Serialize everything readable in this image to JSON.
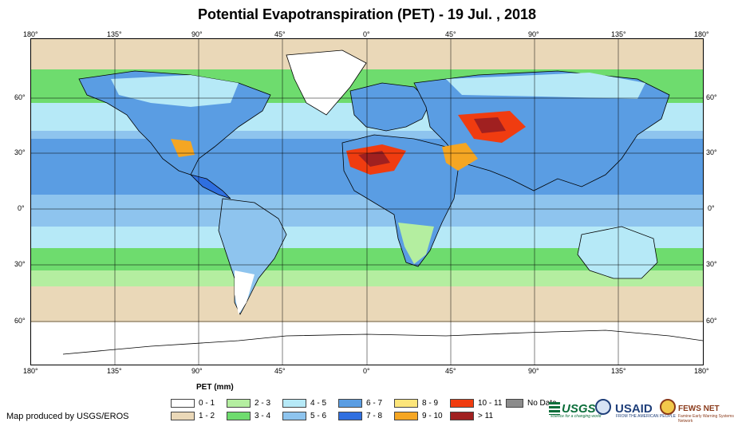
{
  "title": "Potential Evapotranspiration (PET) - 19 Jul. , 2018",
  "longitude_labels": [
    "180°",
    "135°",
    "90°",
    "45°",
    "0°",
    "45°",
    "90°",
    "135°",
    "180°"
  ],
  "latitude_labels": [
    "60°",
    "30°",
    "0°",
    "30°",
    "60°"
  ],
  "legend": {
    "title": "PET (mm)",
    "items": [
      {
        "label": "0 - 1",
        "color": "#ffffff"
      },
      {
        "label": "1 - 2",
        "color": "#ead8b8"
      },
      {
        "label": "2 - 3",
        "color": "#b4eea0"
      },
      {
        "label": "3 - 4",
        "color": "#6edc6e"
      },
      {
        "label": "4 - 5",
        "color": "#b6e9f7"
      },
      {
        "label": "5 - 6",
        "color": "#8ec4ee"
      },
      {
        "label": "6 - 7",
        "color": "#5a9de3"
      },
      {
        "label": "7 - 8",
        "color": "#2f6fe0"
      },
      {
        "label": "8 - 9",
        "color": "#fce57a"
      },
      {
        "label": "9 - 10",
        "color": "#f5a623"
      },
      {
        "label": "10 - 11",
        "color": "#f03c10"
      },
      {
        "label": "> 11",
        "color": "#a02020"
      },
      {
        "label": "No Data",
        "color": "#8c8c8c"
      }
    ]
  },
  "credit": "Map produced by USGS/EROS",
  "logos": {
    "usgs": "USGS",
    "usgs_tagline": "science for a changing world",
    "usaid": "USAID",
    "usaid_tagline": "FROM THE AMERICAN PEOPLE",
    "fews": "FEWS NET",
    "fews_tagline": "Famine Early Warning Systems Network"
  }
}
